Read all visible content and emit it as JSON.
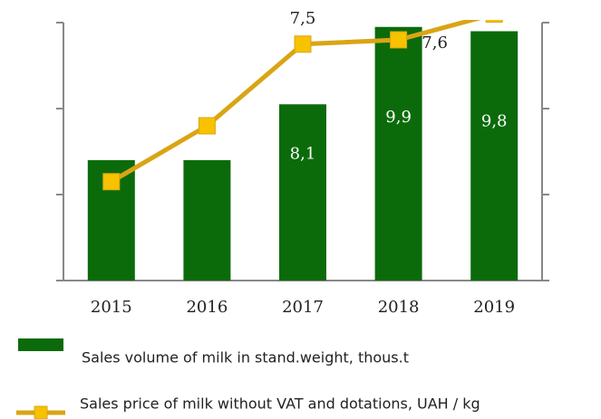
{
  "chart_data": {
    "type": "bar_line",
    "categories": [
      "2015",
      "2016",
      "2017",
      "2018",
      "2019"
    ],
    "series": [
      {
        "name": "Sales volume of milk in stand.weight, thous.t",
        "type": "bar",
        "color": "#0b6b0b",
        "values": [
          6.8,
          6.8,
          8.1,
          9.9,
          9.8
        ],
        "value_labels": [
          null,
          null,
          "8,1",
          "9,9",
          "9,8"
        ]
      },
      {
        "name": "Sales price of milk without VAT and dotations,  UAH / kg",
        "type": "line",
        "axis": "y2",
        "color": "#d9a514",
        "marker_color": "#f7c200",
        "values": [
          4.3,
          5.6,
          7.5,
          7.6,
          8.2
        ],
        "value_labels": [
          null,
          null,
          "7,5",
          "7,6",
          null
        ]
      }
    ],
    "ylim": [
      4,
      10
    ],
    "yticks": [
      4,
      6,
      8,
      10
    ],
    "y2lim": [
      2,
      8
    ],
    "y2ticks": [
      2,
      4,
      6,
      8
    ]
  }
}
